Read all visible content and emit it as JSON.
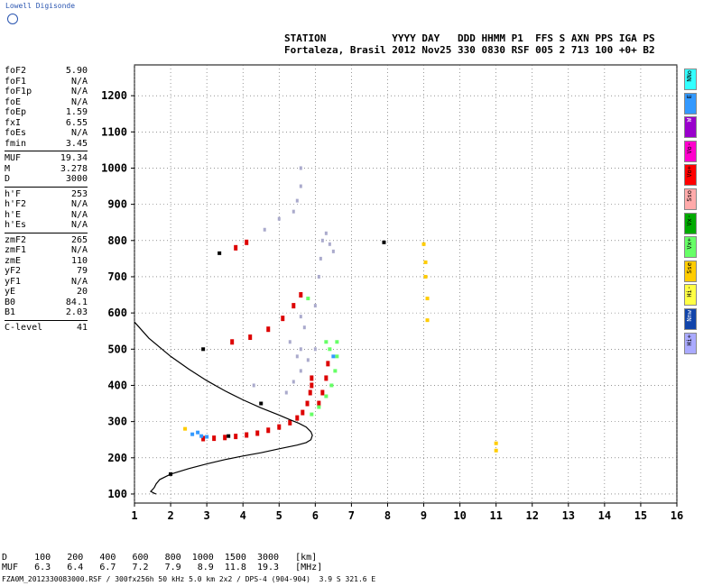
{
  "logo": {
    "text": "Lowell Digisonde"
  },
  "header": {
    "line1": "STATION           YYYY DAY   DDD HHMM P1  FFS S AXN PPS IGA PS",
    "line2": "Fortaleza, Brasil 2012 Nov25 330 0830 RSF 005 2 713 100 +0+ B2"
  },
  "params": [
    {
      "k": "foF2",
      "v": "5.90"
    },
    {
      "k": "foF1",
      "v": "N/A"
    },
    {
      "k": "foF1p",
      "v": "N/A"
    },
    {
      "k": "foE",
      "v": "N/A"
    },
    {
      "k": "foEp",
      "v": "1.59"
    },
    {
      "k": "fxI",
      "v": "6.55"
    },
    {
      "k": "foEs",
      "v": "N/A"
    },
    {
      "k": "fmin",
      "v": "3.45"
    },
    {
      "sep": true
    },
    {
      "k": "MUF",
      "v": "19.34"
    },
    {
      "k": "M",
      "v": "3.278"
    },
    {
      "k": "D",
      "v": "3000"
    },
    {
      "sep": true
    },
    {
      "k": "h'F",
      "v": "253"
    },
    {
      "k": "h'F2",
      "v": "N/A"
    },
    {
      "k": "h'E",
      "v": "N/A"
    },
    {
      "k": "h'Es",
      "v": "N/A"
    },
    {
      "sep": true
    },
    {
      "k": "zmF2",
      "v": "265"
    },
    {
      "k": "zmF1",
      "v": "N/A"
    },
    {
      "k": "zmE",
      "v": "110"
    },
    {
      "k": "yF2",
      "v": "79"
    },
    {
      "k": "yF1",
      "v": "N/A"
    },
    {
      "k": "yE",
      "v": "20"
    },
    {
      "k": "B0",
      "v": "84.1"
    },
    {
      "k": "B1",
      "v": "2.03"
    },
    {
      "sep": true
    },
    {
      "k": "C-level",
      "v": "41"
    }
  ],
  "legend": [
    {
      "label": "NNo",
      "color": "#33ffff"
    },
    {
      "label": "E",
      "color": "#3399ff"
    },
    {
      "label": "W",
      "color": "#9900cc"
    },
    {
      "label": "Vo-",
      "color": "#ff00cc"
    },
    {
      "label": "Vo+",
      "color": "#ff0000"
    },
    {
      "label": "Sso",
      "color": "#ffaaaa"
    },
    {
      "label": "Vx-",
      "color": "#00aa00"
    },
    {
      "label": "Vx+",
      "color": "#66ff66"
    },
    {
      "label": "Sse",
      "color": "#ffcc00"
    },
    {
      "label": "Hi-",
      "color": "#ffff44"
    },
    {
      "label": "Nnw",
      "color": "#1144aa"
    },
    {
      "label": "Hi+",
      "color": "#aaaaff"
    }
  ],
  "dtable": {
    "row1": "D     100   200   400   600   800  1000  1500  3000   [km]",
    "row2": "MUF   6.3   6.4   6.7   7.2   7.9   8.9  11.8  19.3   [MHz]"
  },
  "footer": "FZA0M_2012330083000.RSF / 300fx256h 50 kHz 5.0 km 2x2 / DPS-4 (904-904)  3.9 S 321.6 E",
  "chart_data": {
    "type": "scatter",
    "title": "",
    "xlabel": "",
    "ylabel": "",
    "xlim": [
      1,
      16
    ],
    "ylim": [
      75,
      1285
    ],
    "xticks": [
      1,
      2,
      3,
      4,
      5,
      6,
      7,
      8,
      9,
      10,
      11,
      12,
      13,
      14,
      15,
      16
    ],
    "yticks": [
      100,
      200,
      300,
      400,
      500,
      600,
      700,
      800,
      900,
      1000,
      1100,
      1200
    ],
    "grid": true,
    "series": [
      {
        "name": "Vo+",
        "color": "#dd0000",
        "points": [
          [
            2.9,
            253
          ],
          [
            3.2,
            254
          ],
          [
            3.5,
            256
          ],
          [
            3.8,
            259
          ],
          [
            4.1,
            263
          ],
          [
            4.4,
            268
          ],
          [
            4.7,
            276
          ],
          [
            5.0,
            285
          ],
          [
            5.3,
            297
          ],
          [
            5.5,
            310
          ],
          [
            5.65,
            325
          ],
          [
            5.78,
            350
          ],
          [
            5.86,
            380
          ],
          [
            5.9,
            420
          ],
          [
            3.7,
            520
          ],
          [
            4.2,
            533
          ],
          [
            4.7,
            555
          ],
          [
            5.1,
            585
          ],
          [
            5.4,
            620
          ],
          [
            5.6,
            650
          ],
          [
            3.8,
            780
          ],
          [
            4.1,
            795
          ],
          [
            6.1,
            350
          ],
          [
            6.2,
            380
          ],
          [
            6.3,
            420
          ],
          [
            6.35,
            460
          ],
          [
            5.9,
            400
          ]
        ]
      },
      {
        "name": "Vx+",
        "color": "#66ff66",
        "points": [
          [
            5.9,
            320
          ],
          [
            6.1,
            340
          ],
          [
            6.3,
            370
          ],
          [
            6.45,
            400
          ],
          [
            6.55,
            440
          ],
          [
            6.6,
            480
          ],
          [
            6.6,
            520
          ],
          [
            5.8,
            640
          ],
          [
            6.3,
            520
          ],
          [
            6.4,
            500
          ]
        ]
      },
      {
        "name": "Hi+",
        "color": "#aaaacc",
        "points": [
          [
            5.2,
            380
          ],
          [
            5.4,
            410
          ],
          [
            5.6,
            440
          ],
          [
            5.5,
            480
          ],
          [
            5.3,
            520
          ],
          [
            5.6,
            500
          ],
          [
            5.8,
            470
          ],
          [
            6.0,
            500
          ],
          [
            5.7,
            560
          ],
          [
            5.6,
            590
          ],
          [
            5.4,
            880
          ],
          [
            5.5,
            910
          ],
          [
            5.6,
            950
          ],
          [
            5.6,
            1000
          ],
          [
            4.6,
            830
          ],
          [
            5.0,
            860
          ],
          [
            6.1,
            700
          ],
          [
            6.15,
            750
          ],
          [
            6.2,
            800
          ],
          [
            6.3,
            820
          ],
          [
            6.4,
            790
          ],
          [
            6.5,
            770
          ],
          [
            6.0,
            620
          ],
          [
            4.3,
            400
          ]
        ]
      },
      {
        "name": "E",
        "color": "#3399ff",
        "points": [
          [
            2.6,
            265
          ],
          [
            2.75,
            270
          ],
          [
            2.85,
            260
          ],
          [
            3.0,
            258
          ],
          [
            6.5,
            480
          ]
        ]
      },
      {
        "name": "Sse",
        "color": "#ffcc00",
        "points": [
          [
            9.0,
            790
          ],
          [
            9.05,
            740
          ],
          [
            9.05,
            700
          ],
          [
            9.1,
            640
          ],
          [
            9.1,
            580
          ],
          [
            11.0,
            220
          ],
          [
            11.0,
            240
          ],
          [
            2.4,
            280
          ]
        ]
      },
      {
        "name": "Nnw",
        "color": "#000000",
        "points": [
          [
            3.35,
            765
          ],
          [
            2.9,
            500
          ],
          [
            3.6,
            260
          ],
          [
            7.9,
            795
          ],
          [
            4.5,
            350
          ],
          [
            2.0,
            155
          ]
        ]
      }
    ],
    "profile": {
      "name": "profile",
      "color": "#000000",
      "x": [
        1.0,
        1.4,
        2.0,
        2.5,
        3.0,
        3.5,
        4.0,
        4.5,
        5.0,
        5.3,
        5.55,
        5.75,
        5.88,
        5.92,
        5.88,
        5.75,
        5.5,
        5.0,
        4.5,
        4.0,
        3.5,
        3.0,
        2.5,
        2.0,
        1.7,
        1.6,
        1.55,
        1.5,
        1.45,
        1.55,
        1.6
      ],
      "y": [
        575,
        530,
        480,
        445,
        413,
        385,
        360,
        338,
        318,
        305,
        295,
        285,
        272,
        262,
        250,
        242,
        235,
        225,
        214,
        205,
        195,
        183,
        170,
        155,
        140,
        128,
        118,
        112,
        107,
        102,
        100
      ]
    }
  }
}
